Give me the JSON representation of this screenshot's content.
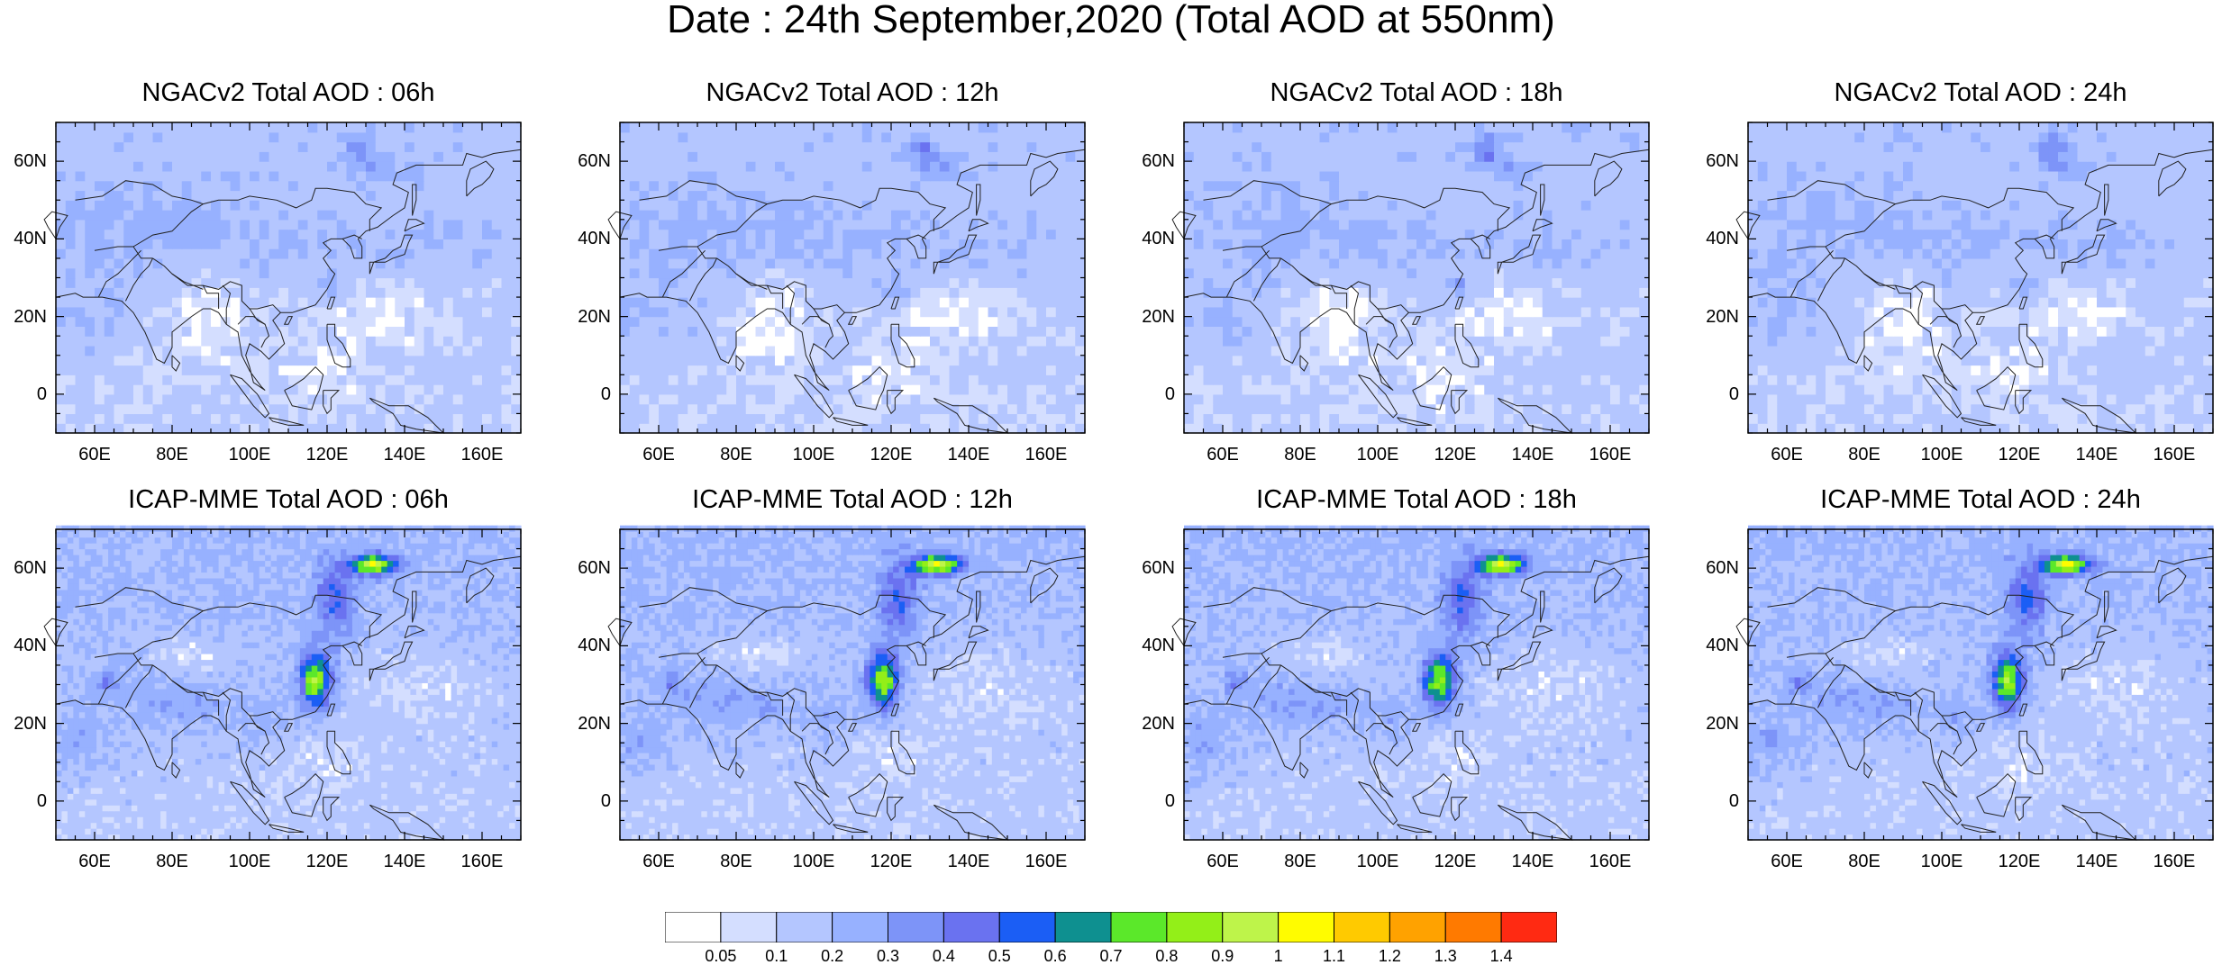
{
  "title": "Date : 24th September,2020 (Total AOD at 550nm)",
  "panels": [
    {
      "title": "NGACv2 Total AOD : 06h",
      "model": "ngac",
      "hour": "06h"
    },
    {
      "title": "NGACv2 Total AOD : 12h",
      "model": "ngac",
      "hour": "12h"
    },
    {
      "title": "NGACv2 Total AOD : 18h",
      "model": "ngac",
      "hour": "18h"
    },
    {
      "title": "NGACv2 Total AOD : 24h",
      "model": "ngac",
      "hour": "24h"
    },
    {
      "title": "ICAP-MME Total AOD : 06h",
      "model": "icap",
      "hour": "06h"
    },
    {
      "title": "ICAP-MME Total AOD : 12h",
      "model": "icap",
      "hour": "12h"
    },
    {
      "title": "ICAP-MME Total AOD : 18h",
      "model": "icap",
      "hour": "18h"
    },
    {
      "title": "ICAP-MME Total AOD : 24h",
      "model": "icap",
      "hour": "24h"
    }
  ],
  "map_extent": {
    "lon_min": 50,
    "lon_max": 170,
    "lat_min": -10,
    "lat_max": 70
  },
  "lat_ticks": [
    {
      "value": 0,
      "label": "0"
    },
    {
      "value": 20,
      "label": "20N"
    },
    {
      "value": 40,
      "label": "40N"
    },
    {
      "value": 60,
      "label": "60N"
    }
  ],
  "lon_ticks": [
    {
      "value": 60,
      "label": "60E"
    },
    {
      "value": 80,
      "label": "80E"
    },
    {
      "value": 100,
      "label": "100E"
    },
    {
      "value": 120,
      "label": "120E"
    },
    {
      "value": 140,
      "label": "140E"
    },
    {
      "value": 160,
      "label": "160E"
    }
  ],
  "colorbar": {
    "colors": [
      "#ffffff",
      "#d4deff",
      "#b4c6ff",
      "#97b1ff",
      "#7d94f8",
      "#6a72f0",
      "#1b5ef5",
      "#0e9090",
      "#5be82a",
      "#93ef18",
      "#bef44a",
      "#fffc00",
      "#ffca00",
      "#ffa200",
      "#ff7a00",
      "#ff2a12"
    ],
    "labels": [
      "0.05",
      "0.1",
      "0.2",
      "0.3",
      "0.4",
      "0.5",
      "0.6",
      "0.7",
      "0.8",
      "0.9",
      "1",
      "1.1",
      "1.2",
      "1.3",
      "1.4"
    ]
  }
}
